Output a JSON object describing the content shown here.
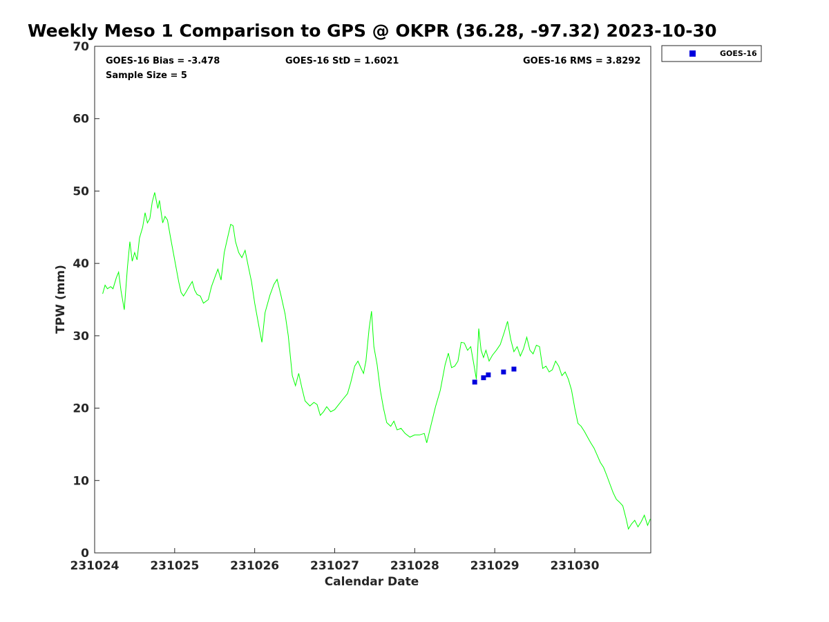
{
  "chart_data": {
    "type": "line",
    "title": "Weekly Meso 1 Comparison to GPS @ OKPR (36.28, -97.32) 2023-10-30",
    "xlabel": "Calendar Date",
    "ylabel": "TPW (mm)",
    "xlim": [
      231024.0,
      231030.95
    ],
    "ylim": [
      0,
      70
    ],
    "x_ticks": [
      {
        "value": 231024,
        "label": "231024"
      },
      {
        "value": 231025,
        "label": "231025"
      },
      {
        "value": 231026,
        "label": "231026"
      },
      {
        "value": 231027,
        "label": "231027"
      },
      {
        "value": 231028,
        "label": "231028"
      },
      {
        "value": 231029,
        "label": "231029"
      },
      {
        "value": 231030,
        "label": "231030"
      }
    ],
    "y_ticks": [
      {
        "value": 0,
        "label": "0"
      },
      {
        "value": 10,
        "label": "10"
      },
      {
        "value": 20,
        "label": "20"
      },
      {
        "value": 30,
        "label": "30"
      },
      {
        "value": 40,
        "label": "40"
      },
      {
        "value": 50,
        "label": "50"
      },
      {
        "value": 60,
        "label": "60"
      },
      {
        "value": 70,
        "label": "70"
      }
    ],
    "stats": {
      "bias": "GOES-16 Bias = -3.478",
      "std": "GOES-16 StD = 1.6021",
      "rms": "GOES-16 RMS = 3.8292",
      "sample_size": "Sample Size = 5"
    },
    "legend": {
      "label": "GOES-16",
      "placement": "top-right outside"
    },
    "series": [
      {
        "name": "GPS",
        "color": "#00ff00",
        "kind": "line",
        "points": [
          [
            231024.1,
            35.8
          ],
          [
            231024.13,
            37.0
          ],
          [
            231024.16,
            36.5
          ],
          [
            231024.2,
            36.8
          ],
          [
            231024.23,
            36.5
          ],
          [
            231024.27,
            38.0
          ],
          [
            231024.3,
            38.8
          ],
          [
            231024.33,
            36.2
          ],
          [
            231024.37,
            33.6
          ],
          [
            231024.41,
            39.5
          ],
          [
            231024.44,
            43.0
          ],
          [
            231024.47,
            40.3
          ],
          [
            231024.5,
            41.5
          ],
          [
            231024.53,
            40.5
          ],
          [
            231024.56,
            43.5
          ],
          [
            231024.6,
            45.0
          ],
          [
            231024.63,
            47.0
          ],
          [
            231024.66,
            45.6
          ],
          [
            231024.69,
            46.2
          ],
          [
            231024.72,
            48.5
          ],
          [
            231024.75,
            49.8
          ],
          [
            231024.79,
            47.6
          ],
          [
            231024.81,
            48.7
          ],
          [
            231024.85,
            45.6
          ],
          [
            231024.88,
            46.5
          ],
          [
            231024.91,
            46.0
          ],
          [
            231024.95,
            43.5
          ],
          [
            231025.0,
            40.5
          ],
          [
            231025.05,
            37.5
          ],
          [
            231025.08,
            36.0
          ],
          [
            231025.11,
            35.5
          ],
          [
            231025.14,
            36.0
          ],
          [
            231025.18,
            36.8
          ],
          [
            231025.22,
            37.5
          ],
          [
            231025.25,
            36.3
          ],
          [
            231025.28,
            35.7
          ],
          [
            231025.32,
            35.5
          ],
          [
            231025.36,
            34.5
          ],
          [
            231025.42,
            35.0
          ],
          [
            231025.46,
            36.8
          ],
          [
            231025.5,
            38.0
          ],
          [
            231025.54,
            39.2
          ],
          [
            231025.58,
            37.7
          ],
          [
            231025.62,
            41.5
          ],
          [
            231025.66,
            43.5
          ],
          [
            231025.7,
            45.4
          ],
          [
            231025.73,
            45.2
          ],
          [
            231025.76,
            43.0
          ],
          [
            231025.8,
            41.5
          ],
          [
            231025.84,
            40.8
          ],
          [
            231025.88,
            41.8
          ],
          [
            231025.92,
            39.6
          ],
          [
            231025.96,
            37.5
          ],
          [
            231026.0,
            34.5
          ],
          [
            231026.05,
            31.5
          ],
          [
            231026.09,
            29.1
          ],
          [
            231026.13,
            33.2
          ],
          [
            231026.19,
            35.6
          ],
          [
            231026.24,
            37.1
          ],
          [
            231026.28,
            37.8
          ],
          [
            231026.33,
            35.5
          ],
          [
            231026.38,
            33.0
          ],
          [
            231026.42,
            30.0
          ],
          [
            231026.47,
            24.5
          ],
          [
            231026.51,
            23.1
          ],
          [
            231026.55,
            24.8
          ],
          [
            231026.59,
            22.8
          ],
          [
            231026.63,
            21.0
          ],
          [
            231026.69,
            20.3
          ],
          [
            231026.74,
            20.8
          ],
          [
            231026.78,
            20.5
          ],
          [
            231026.82,
            19.0
          ],
          [
            231026.86,
            19.5
          ],
          [
            231026.9,
            20.2
          ],
          [
            231026.95,
            19.5
          ],
          [
            231027.0,
            19.8
          ],
          [
            231027.05,
            20.5
          ],
          [
            231027.1,
            21.2
          ],
          [
            231027.16,
            22.0
          ],
          [
            231027.2,
            23.5
          ],
          [
            231027.25,
            25.8
          ],
          [
            231027.29,
            26.5
          ],
          [
            231027.33,
            25.5
          ],
          [
            231027.36,
            24.8
          ],
          [
            231027.39,
            26.5
          ],
          [
            231027.43,
            31.0
          ],
          [
            231027.46,
            33.4
          ],
          [
            231027.49,
            28.5
          ],
          [
            231027.53,
            26.0
          ],
          [
            231027.57,
            22.5
          ],
          [
            231027.61,
            20.0
          ],
          [
            231027.65,
            18.0
          ],
          [
            231027.7,
            17.5
          ],
          [
            231027.74,
            18.2
          ],
          [
            231027.78,
            17.0
          ],
          [
            231027.83,
            17.2
          ],
          [
            231027.88,
            16.5
          ],
          [
            231027.94,
            16.0
          ],
          [
            231028.0,
            16.3
          ],
          [
            231028.06,
            16.3
          ],
          [
            231028.12,
            16.5
          ],
          [
            231028.15,
            15.2
          ],
          [
            231028.2,
            17.5
          ],
          [
            231028.26,
            20.2
          ],
          [
            231028.32,
            22.5
          ],
          [
            231028.38,
            26.0
          ],
          [
            231028.42,
            27.6
          ],
          [
            231028.46,
            25.6
          ],
          [
            231028.5,
            25.8
          ],
          [
            231028.54,
            26.5
          ],
          [
            231028.58,
            29.1
          ],
          [
            231028.62,
            29.0
          ],
          [
            231028.66,
            28.0
          ],
          [
            231028.7,
            28.5
          ],
          [
            231028.74,
            26.0
          ],
          [
            231028.77,
            24.0
          ],
          [
            231028.8,
            31.0
          ],
          [
            231028.83,
            28.0
          ],
          [
            231028.86,
            27.0
          ],
          [
            231028.89,
            28.0
          ],
          [
            231028.93,
            26.5
          ],
          [
            231028.97,
            27.3
          ],
          [
            231029.02,
            28.0
          ],
          [
            231029.07,
            28.8
          ],
          [
            231029.12,
            30.5
          ],
          [
            231029.16,
            32.0
          ],
          [
            231029.2,
            29.5
          ],
          [
            231029.24,
            27.8
          ],
          [
            231029.28,
            28.5
          ],
          [
            231029.32,
            27.2
          ],
          [
            231029.36,
            28.2
          ],
          [
            231029.4,
            29.8
          ],
          [
            231029.44,
            28.0
          ],
          [
            231029.48,
            27.5
          ],
          [
            231029.52,
            28.7
          ],
          [
            231029.56,
            28.5
          ],
          [
            231029.6,
            25.5
          ],
          [
            231029.64,
            25.8
          ],
          [
            231029.68,
            25.0
          ],
          [
            231029.72,
            25.3
          ],
          [
            231029.76,
            26.5
          ],
          [
            231029.8,
            25.8
          ],
          [
            231029.84,
            24.5
          ],
          [
            231029.88,
            25.0
          ],
          [
            231029.92,
            24.0
          ],
          [
            231029.96,
            22.5
          ],
          [
            231030.0,
            20.0
          ],
          [
            231030.04,
            17.9
          ],
          [
            231030.08,
            17.5
          ],
          [
            231030.12,
            16.8
          ],
          [
            231030.16,
            16.0
          ],
          [
            231030.2,
            15.2
          ],
          [
            231030.24,
            14.5
          ],
          [
            231030.28,
            13.5
          ],
          [
            231030.32,
            12.5
          ],
          [
            231030.36,
            11.8
          ],
          [
            231030.4,
            10.7
          ],
          [
            231030.44,
            9.5
          ],
          [
            231030.48,
            8.3
          ],
          [
            231030.52,
            7.4
          ],
          [
            231030.56,
            7.0
          ],
          [
            231030.6,
            6.5
          ],
          [
            231030.64,
            4.8
          ],
          [
            231030.67,
            3.3
          ],
          [
            231030.71,
            4.0
          ],
          [
            231030.75,
            4.5
          ],
          [
            231030.79,
            3.6
          ],
          [
            231030.83,
            4.3
          ],
          [
            231030.87,
            5.2
          ],
          [
            231030.91,
            3.8
          ],
          [
            231030.945,
            4.7
          ]
        ]
      },
      {
        "name": "GOES-16",
        "color": "#0000dd",
        "kind": "scatter",
        "points": [
          [
            231028.75,
            23.6
          ],
          [
            231028.86,
            24.2
          ],
          [
            231028.92,
            24.6
          ],
          [
            231029.11,
            25.0
          ],
          [
            231029.24,
            25.4
          ]
        ]
      }
    ]
  }
}
